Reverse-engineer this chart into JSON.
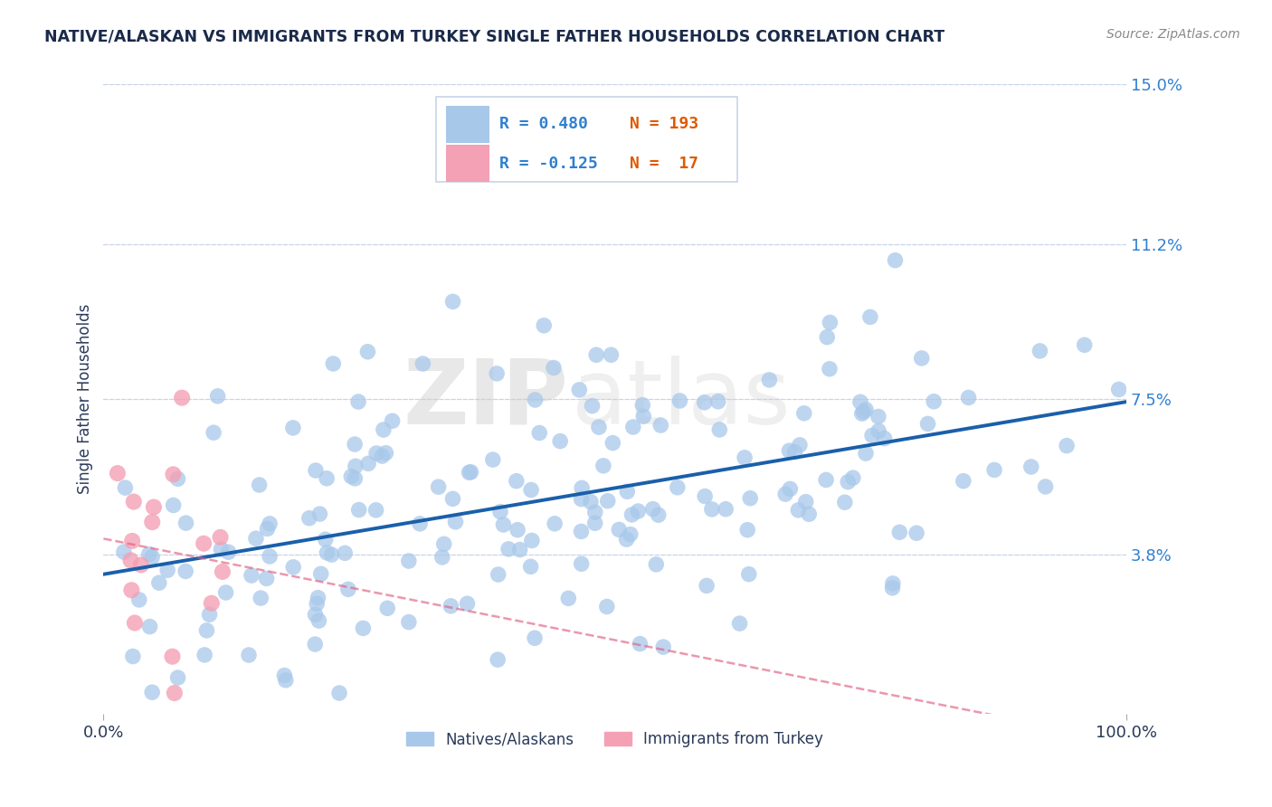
{
  "title": "NATIVE/ALASKAN VS IMMIGRANTS FROM TURKEY SINGLE FATHER HOUSEHOLDS CORRELATION CHART",
  "source": "Source: ZipAtlas.com",
  "ylabel": "Single Father Households",
  "xlabel": "",
  "xlim": [
    0,
    1.0
  ],
  "ylim": [
    0,
    0.15
  ],
  "yticks": [
    0.038,
    0.075,
    0.112,
    0.15
  ],
  "ytick_labels": [
    "3.8%",
    "7.5%",
    "11.2%",
    "15.0%"
  ],
  "xticks": [
    0.0,
    1.0
  ],
  "xtick_labels": [
    "0.0%",
    "100.0%"
  ],
  "legend_r1": "R = 0.480",
  "legend_n1": "N = 193",
  "legend_r2": "R = -0.125",
  "legend_n2": "N =  17",
  "r1": 0.48,
  "n1": 193,
  "r2": -0.125,
  "n2": 17,
  "color_blue": "#a8c8ea",
  "color_blue_line": "#1a5faa",
  "color_pink": "#f4a0b5",
  "color_pink_line": "#e06080",
  "watermark_zip": "ZIP",
  "watermark_atlas": "atlas",
  "background_color": "#ffffff",
  "grid_color": "#c8d4e8",
  "label_blue": "Natives/Alaskans",
  "label_pink": "Immigrants from Turkey",
  "title_color": "#1a2a4a",
  "axis_label_color": "#2a3a5a",
  "tick_label_color_right": "#3080d0",
  "legend_r_color": "#3080d0",
  "legend_n_color": "#e05800"
}
